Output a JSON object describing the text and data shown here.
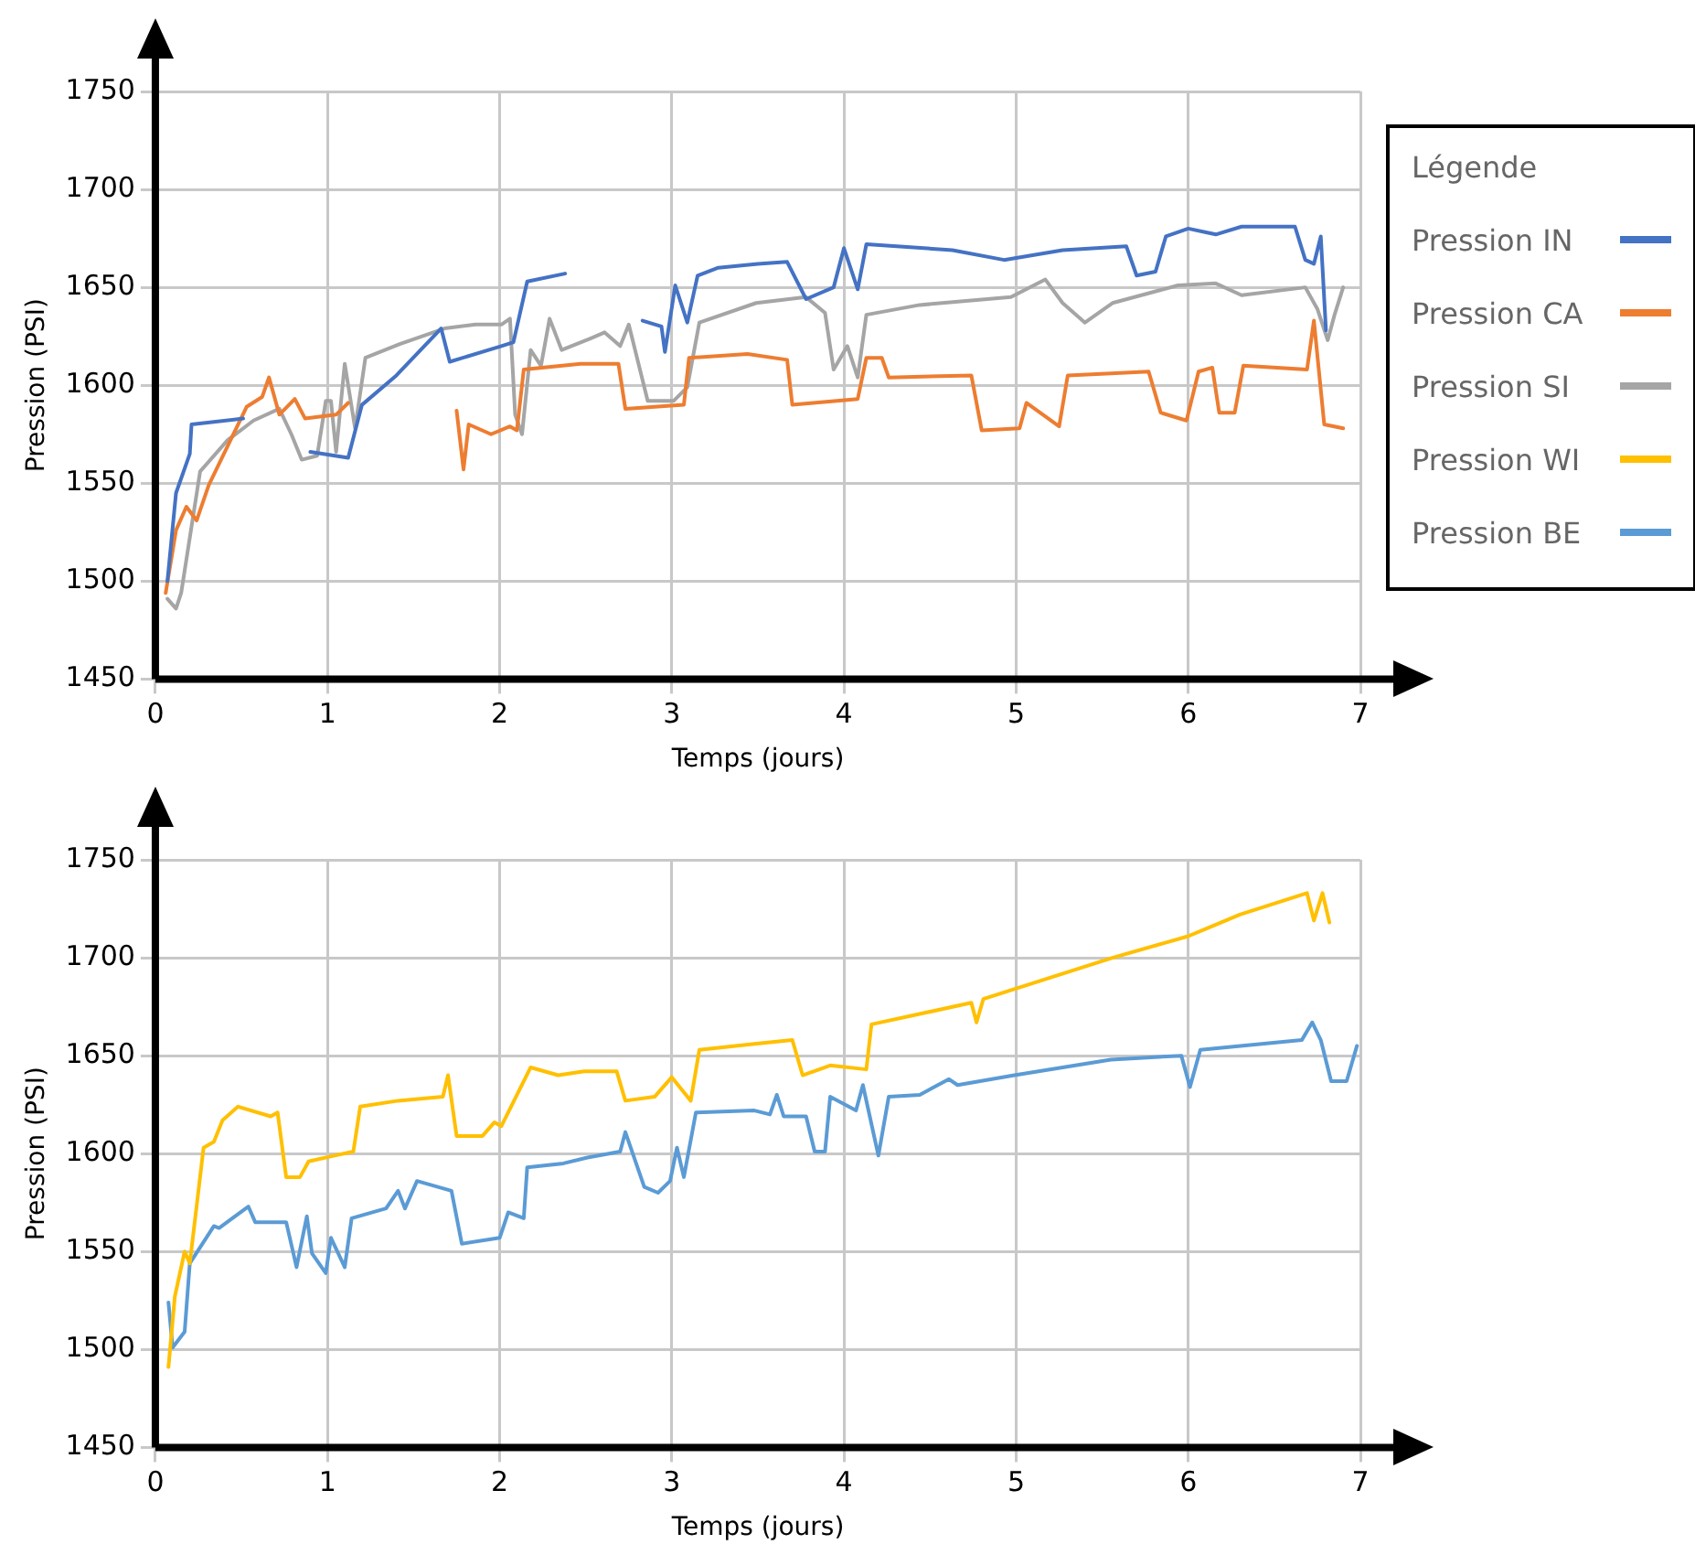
{
  "chart_data": [
    {
      "type": "line",
      "xlabel": "Temps (jours)",
      "ylabel": "Pression (PSI)",
      "legend_title": "Légende",
      "legend": "right",
      "grid": true,
      "line_style": "solid",
      "xlim": [
        0,
        7
      ],
      "xticks": [
        0,
        1,
        2,
        3,
        4,
        5,
        6,
        7
      ],
      "ylim": [
        1450,
        1750
      ],
      "yticks": [
        1450,
        1500,
        1550,
        1600,
        1650,
        1700,
        1750
      ],
      "series": [
        {
          "name": "Pression IN",
          "color": "#4472c4",
          "x": [
            0.07,
            0.12,
            0.2,
            0.21,
            0.51,
            0.55,
            0.9,
            1.12,
            1.2,
            1.4,
            1.66,
            1.71,
            2.01,
            2.08,
            2.16,
            2.38,
            2.6,
            2.83,
            2.94,
            2.96,
            3.02,
            3.09,
            3.15,
            3.27,
            3.5,
            3.67,
            3.78,
            3.94,
            4.0,
            4.08,
            4.13,
            4.63,
            4.93,
            5.27,
            5.64,
            5.7,
            5.81,
            5.87,
            6.0,
            6.16,
            6.31,
            6.62,
            6.68,
            6.73,
            6.77,
            6.8
          ],
          "values": [
            1500,
            1545,
            1565,
            1580,
            1583,
            null,
            1566,
            1563,
            1590,
            1605,
            1629,
            1612,
            1620,
            1622,
            1653,
            1657,
            null,
            1633,
            1630,
            1617,
            1651,
            1632,
            1656,
            1660,
            1662,
            1663,
            1644,
            1650,
            1670,
            1649,
            1672,
            1669,
            1664,
            1669,
            1671,
            1656,
            1658,
            1676,
            1680,
            1677,
            1681,
            1681,
            1664,
            1662,
            1676,
            1628
          ]
        },
        {
          "name": "Pression CA",
          "color": "#ed7d31",
          "x": [
            0.06,
            0.12,
            0.18,
            0.24,
            0.31,
            0.42,
            0.53,
            0.62,
            0.66,
            0.72,
            0.81,
            0.87,
            1.05,
            1.12,
            1.4,
            1.75,
            1.79,
            1.82,
            1.95,
            2.06,
            2.1,
            2.14,
            2.47,
            2.69,
            2.73,
            3.07,
            3.1,
            3.44,
            3.67,
            3.7,
            4.08,
            4.13,
            4.22,
            4.26,
            4.74,
            4.8,
            5.02,
            5.06,
            5.25,
            5.3,
            5.77,
            5.84,
            5.99,
            6.06,
            6.14,
            6.18,
            6.27,
            6.32,
            6.69,
            6.73,
            6.79,
            6.9
          ],
          "values": [
            1494,
            1526,
            1538,
            1531,
            1549,
            1569,
            1589,
            1594,
            1604,
            1585,
            1593,
            1583,
            1585,
            1591,
            null,
            1587,
            1557,
            1580,
            1575,
            1579,
            1577,
            1608,
            1611,
            1611,
            1588,
            1590,
            1614,
            1616,
            1613,
            1590,
            1593,
            1614,
            1614,
            1604,
            1605,
            1577,
            1578,
            1591,
            1579,
            1605,
            1607,
            1586,
            1582,
            1607,
            1609,
            1586,
            1586,
            1610,
            1608,
            1633,
            1580,
            1578
          ]
        },
        {
          "name": "Pression SI",
          "color": "#a5a5a5",
          "x": [
            0.07,
            0.12,
            0.15,
            0.26,
            0.42,
            0.57,
            0.72,
            0.79,
            0.85,
            0.94,
            0.99,
            1.02,
            1.05,
            1.1,
            1.16,
            1.22,
            1.42,
            1.68,
            1.86,
            2.01,
            2.06,
            2.09,
            2.13,
            2.18,
            2.24,
            2.29,
            2.36,
            2.53,
            2.61,
            2.7,
            2.75,
            2.86,
            3.01,
            3.09,
            3.16,
            3.49,
            3.78,
            3.89,
            3.94,
            4.02,
            4.08,
            4.13,
            4.44,
            4.97,
            5.17,
            5.27,
            5.4,
            5.56,
            5.94,
            6.16,
            6.31,
            6.68,
            6.75,
            6.81,
            6.85,
            6.9
          ],
          "values": [
            1491,
            1486,
            1494,
            1556,
            1572,
            1582,
            1588,
            1575,
            1562,
            1564,
            1592,
            1592,
            1566,
            1611,
            1578,
            1614,
            1621,
            1629,
            1631,
            1631,
            1634,
            1585,
            1575,
            1618,
            1610,
            1634,
            1618,
            1624,
            1627,
            1620,
            1631,
            1592,
            1592,
            1599,
            1632,
            1642,
            1645,
            1637,
            1608,
            1620,
            1604,
            1636,
            1641,
            1645,
            1654,
            1642,
            1632,
            1642,
            1651,
            1652,
            1646,
            1650,
            1639,
            1623,
            1636,
            1650
          ]
        }
      ]
    },
    {
      "type": "line",
      "xlabel": "Temps (jours)",
      "ylabel": "Pression (PSI)",
      "legend": "right",
      "grid": true,
      "line_style": "solid",
      "xlim": [
        0,
        7
      ],
      "xticks": [
        0,
        1,
        2,
        3,
        4,
        5,
        6,
        7
      ],
      "ylim": [
        1450,
        1750
      ],
      "yticks": [
        1450,
        1500,
        1550,
        1600,
        1650,
        1700,
        1750
      ],
      "series": [
        {
          "name": "Pression WI",
          "color": "#ffc000",
          "x": [
            0.076,
            0.113,
            0.17,
            0.2,
            0.28,
            0.34,
            0.39,
            0.48,
            0.67,
            0.71,
            0.76,
            0.84,
            0.89,
            1.04,
            1.15,
            1.19,
            1.41,
            1.67,
            1.7,
            1.75,
            1.9,
            1.97,
            2.01,
            2.18,
            2.34,
            2.49,
            2.68,
            2.73,
            2.9,
            3.0,
            3.11,
            3.16,
            3.48,
            3.7,
            3.76,
            3.92,
            4.13,
            4.16,
            4.74,
            4.77,
            4.81,
            5.56,
            6.0,
            6.3,
            6.69,
            6.73,
            6.78,
            6.82
          ],
          "values": [
            1491,
            1527,
            1550,
            1544,
            1603,
            1606,
            1617,
            1624,
            1619,
            1621,
            1588,
            1588,
            1596,
            1599,
            1601,
            1624,
            1627,
            1629,
            1640,
            1609,
            1609,
            1616,
            1614,
            1644,
            1640,
            1642,
            1642,
            1627,
            1629,
            1639,
            1627,
            1653,
            1656,
            1658,
            1640,
            1645,
            1643,
            1666,
            1677,
            1667,
            1679,
            1700,
            1711,
            1722,
            1733,
            1719,
            1733,
            1718
          ]
        },
        {
          "name": "Pression BE",
          "color": "#5b9bd5",
          "x": [
            0.076,
            0.1,
            0.17,
            0.2,
            0.34,
            0.37,
            0.54,
            0.58,
            0.76,
            0.82,
            0.88,
            0.91,
            0.99,
            1.02,
            1.1,
            1.14,
            1.34,
            1.41,
            1.45,
            1.52,
            1.72,
            1.78,
            2.0,
            2.05,
            2.14,
            2.16,
            2.37,
            2.51,
            2.7,
            2.73,
            2.84,
            2.92,
            2.99,
            3.03,
            3.07,
            3.14,
            3.48,
            3.57,
            3.61,
            3.65,
            3.78,
            3.83,
            3.89,
            3.92,
            4.07,
            4.11,
            4.15,
            4.2,
            4.26,
            4.44,
            4.61,
            4.66,
            4.99,
            5.55,
            5.96,
            6.01,
            6.07,
            6.66,
            6.72,
            6.77,
            6.83,
            6.92,
            6.98
          ],
          "values": [
            1524,
            1501,
            1509,
            1544,
            1563,
            1562,
            1573,
            1565,
            1565,
            1542,
            1568,
            1549,
            1539,
            1557,
            1542,
            1567,
            1572,
            1581,
            1572,
            1586,
            1581,
            1554,
            1557,
            1570,
            1567,
            1593,
            1595,
            1598,
            1601,
            1611,
            1583,
            1580,
            1586,
            1603,
            1588,
            1621,
            1622,
            1620,
            1630,
            1619,
            1619,
            1601,
            1601,
            1629,
            1622,
            1635,
            1619,
            1599,
            1629,
            1630,
            1638,
            1635,
            1640,
            1648,
            1650,
            1634,
            1653,
            1658,
            1667,
            1658,
            1637,
            1637,
            1655
          ]
        }
      ]
    }
  ]
}
